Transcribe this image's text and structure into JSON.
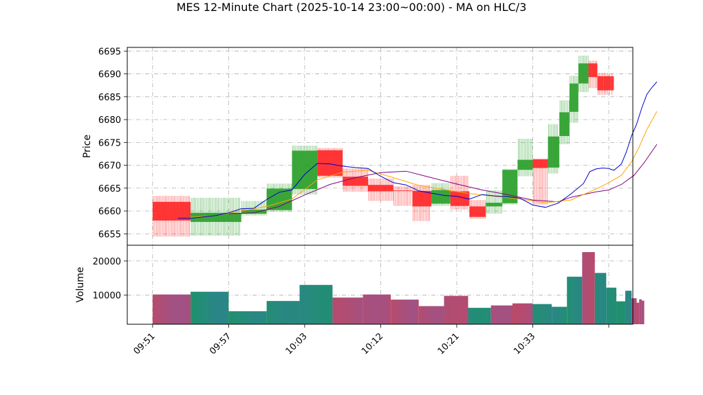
{
  "chart_data": [
    {
      "type": "candlestick",
      "panel": "price",
      "title": "MES 12-Minute Chart (2025-10-14 23:00~00:00) - MA on HLC/3",
      "ylabel": "Price",
      "ylim": [
        6652.5,
        6695.8
      ],
      "yticks": [
        "6655",
        "6660",
        "6665",
        "6670",
        "6675",
        "6680",
        "6685",
        "6690",
        "6695"
      ],
      "ytick_values": [
        6655,
        6660,
        6665,
        6670,
        6675,
        6680,
        6685,
        6690,
        6695
      ],
      "xticks": [
        "09:51",
        "09:57",
        "10:03",
        "10:12",
        "10:21",
        "10:33",
        ""
      ],
      "xtick_index": [
        0,
        6,
        12,
        18,
        24,
        30,
        36
      ],
      "x_range": [
        -2,
        37.9
      ],
      "grid": true,
      "colors": {
        "up": "#2ca02c",
        "down": "#ff2828",
        "grid": "#b0b0b0",
        "ma_fast": "#0000cc",
        "ma_mid": "#ffa500",
        "ma_slow": "#800080"
      },
      "candles": [
        {
          "o": 6662.0,
          "h": 6663.3,
          "l": 6654.4,
          "c": 6657.9
        },
        {
          "o": 6662.0,
          "h": 6663.3,
          "l": 6654.4,
          "c": 6657.9
        },
        {
          "o": 6662.0,
          "h": 6663.3,
          "l": 6654.4,
          "c": 6657.9
        },
        {
          "o": 6657.6,
          "h": 6662.9,
          "l": 6654.6,
          "c": 6659.6
        },
        {
          "o": 6657.6,
          "h": 6662.9,
          "l": 6654.6,
          "c": 6659.6
        },
        {
          "o": 6657.6,
          "h": 6662.9,
          "l": 6654.6,
          "c": 6659.6
        },
        {
          "o": 6659.4,
          "h": 6662.2,
          "l": 6659.0,
          "c": 6660.3
        },
        {
          "o": 6659.4,
          "h": 6662.2,
          "l": 6659.0,
          "c": 6660.3
        },
        {
          "o": 6659.4,
          "h": 6662.2,
          "l": 6659.0,
          "c": 6660.3
        },
        {
          "o": 6660.2,
          "h": 6666.0,
          "l": 6659.8,
          "c": 6664.9
        },
        {
          "o": 6660.2,
          "h": 6666.0,
          "l": 6659.8,
          "c": 6664.9
        },
        {
          "o": 6664.8,
          "h": 6674.3,
          "l": 6663.6,
          "c": 6673.2
        },
        {
          "o": 6664.8,
          "h": 6674.3,
          "l": 6663.6,
          "c": 6673.2
        },
        {
          "o": 6664.8,
          "h": 6674.3,
          "l": 6663.6,
          "c": 6673.2
        },
        {
          "o": 6673.3,
          "h": 6673.8,
          "l": 6667.3,
          "c": 6667.7
        },
        {
          "o": 6673.3,
          "h": 6673.8,
          "l": 6667.3,
          "c": 6667.7
        },
        {
          "o": 6673.3,
          "h": 6673.8,
          "l": 6667.3,
          "c": 6667.7
        },
        {
          "o": 6667.5,
          "h": 6669.3,
          "l": 6664.2,
          "c": 6665.5
        },
        {
          "o": 6667.5,
          "h": 6669.3,
          "l": 6664.2,
          "c": 6665.5
        },
        {
          "o": 6665.7,
          "h": 6667.1,
          "l": 6662.2,
          "c": 6664.3
        },
        {
          "o": 6665.7,
          "h": 6667.1,
          "l": 6662.2,
          "c": 6664.3
        },
        {
          "o": 6664.5,
          "h": 6665.4,
          "l": 6661.1,
          "c": 6664.4
        },
        {
          "o": 6664.4,
          "h": 6665.7,
          "l": 6657.8,
          "c": 6661.0
        },
        {
          "o": 6661.6,
          "h": 6666.1,
          "l": 6661.1,
          "c": 6664.6
        },
        {
          "o": 6664.3,
          "h": 6667.7,
          "l": 6660.3,
          "c": 6661.1
        },
        {
          "o": 6661.0,
          "h": 6662.4,
          "l": 6658.3,
          "c": 6658.7
        },
        {
          "o": 6661.0,
          "h": 6664.5,
          "l": 6659.4,
          "c": 6661.8
        },
        {
          "o": 6661.7,
          "h": 6669.2,
          "l": 6661.4,
          "c": 6669.0
        },
        {
          "o": 6669.0,
          "h": 6675.8,
          "l": 6667.6,
          "c": 6671.2
        },
        {
          "o": 6671.3,
          "h": 6671.5,
          "l": 6661.4,
          "c": 6669.4
        },
        {
          "o": 6669.5,
          "h": 6679.0,
          "l": 6668.2,
          "c": 6676.3
        },
        {
          "o": 6676.4,
          "h": 6684.2,
          "l": 6674.6,
          "c": 6681.6
        },
        {
          "o": 6681.7,
          "h": 6689.6,
          "l": 6679.3,
          "c": 6687.9
        },
        {
          "o": 6687.9,
          "h": 6694.0,
          "l": 6686.0,
          "c": 6692.3
        },
        {
          "o": 6692.3,
          "h": 6692.9,
          "l": 6686.9,
          "c": 6689.3
        },
        {
          "o": 6689.5,
          "h": 6690.2,
          "l": 6685.4,
          "c": 6686.4
        }
      ],
      "candle_span": [
        [
          0,
          3
        ],
        [
          3,
          7
        ],
        [
          7,
          9
        ],
        [
          9,
          11
        ],
        [
          11,
          13
        ],
        [
          13,
          15
        ],
        [
          15,
          17
        ],
        [
          17,
          19
        ],
        [
          19,
          20.5
        ],
        [
          20.5,
          22
        ],
        [
          22,
          23.5
        ],
        [
          23.5,
          25
        ],
        [
          25,
          26.3
        ],
        [
          26.3,
          27.6
        ],
        [
          27.6,
          28.8
        ],
        [
          28.8,
          30
        ],
        [
          30,
          31.2
        ],
        [
          31.2,
          32.1
        ],
        [
          32.1,
          32.9
        ],
        [
          32.9,
          33.6
        ],
        [
          33.6,
          34.4
        ],
        [
          34.4,
          35.1
        ],
        [
          35.1,
          35.6
        ],
        [
          35.6,
          36
        ],
        [
          36,
          36.2
        ],
        [
          36.2,
          36.4
        ]
      ],
      "span_candle": [
        0,
        3,
        6,
        9,
        11,
        14,
        17,
        19,
        21,
        22,
        23,
        24,
        25,
        26,
        27,
        28,
        29,
        30,
        31,
        32,
        33,
        34,
        35,
        35,
        35,
        35
      ],
      "ma_fast": [
        [
          2,
          6658.4
        ],
        [
          3,
          6658.4
        ],
        [
          4,
          6658.7
        ],
        [
          5,
          6659.0
        ],
        [
          6,
          6659.6
        ],
        [
          7,
          6660.5
        ],
        [
          8,
          6660.6
        ],
        [
          9,
          6662.5
        ],
        [
          10,
          6664.1
        ],
        [
          11,
          6664.6
        ],
        [
          12,
          6668.0
        ],
        [
          13,
          6670.4
        ],
        [
          14,
          6670.3
        ],
        [
          15,
          6669.8
        ],
        [
          16,
          6669.5
        ],
        [
          17,
          6669.3
        ],
        [
          18,
          6667.6
        ],
        [
          19,
          6666.2
        ],
        [
          20,
          6665.7
        ],
        [
          21,
          6664.4
        ],
        [
          22,
          6663.9
        ],
        [
          23,
          6663.4
        ],
        [
          24,
          6663.2
        ],
        [
          25,
          6662.6
        ],
        [
          26,
          6663.6
        ],
        [
          27,
          6663.3
        ],
        [
          28,
          6663.1
        ],
        [
          29,
          6662.8
        ],
        [
          30,
          6661.3
        ],
        [
          31,
          6660.8
        ],
        [
          32,
          6661.7
        ],
        [
          33,
          6663.7
        ],
        [
          34,
          6666.0
        ],
        [
          34.5,
          6668.6
        ],
        [
          35,
          6669.2
        ],
        [
          35.5,
          6669.4
        ],
        [
          36,
          6669.3
        ],
        [
          36.4,
          6668.9
        ],
        [
          36.8,
          6669.8
        ],
        [
          37,
          6670.3
        ],
        [
          37.4,
          6673.0
        ],
        [
          37.8,
          6676.5
        ],
        [
          38.2,
          6679.0
        ],
        [
          38.6,
          6682.5
        ],
        [
          39,
          6685.5
        ],
        [
          39.4,
          6687.0
        ],
        [
          39.8,
          6688.3
        ]
      ],
      "ma_mid": [
        [
          3,
          6658.6
        ],
        [
          5,
          6659.0
        ],
        [
          7,
          6660.0
        ],
        [
          9,
          6661.0
        ],
        [
          11,
          6662.6
        ],
        [
          13,
          6666.8
        ],
        [
          15,
          6668.5
        ],
        [
          17,
          6668.9
        ],
        [
          19,
          6667.3
        ],
        [
          21,
          6665.6
        ],
        [
          23,
          6664.7
        ],
        [
          25,
          6663.8
        ],
        [
          27,
          6663.2
        ],
        [
          29,
          6662.6
        ],
        [
          31,
          6661.8
        ],
        [
          33,
          6662.4
        ],
        [
          35,
          6664.8
        ],
        [
          36,
          6666.2
        ],
        [
          37,
          6667.8
        ],
        [
          37.8,
          6670.8
        ],
        [
          38.4,
          6674.0
        ],
        [
          39,
          6677.8
        ],
        [
          39.8,
          6681.8
        ]
      ],
      "ma_slow": [
        [
          6,
          6659.4
        ],
        [
          8,
          6659.6
        ],
        [
          10,
          6661.0
        ],
        [
          12,
          6663.5
        ],
        [
          14,
          6665.8
        ],
        [
          16,
          6667.3
        ],
        [
          18,
          6668.4
        ],
        [
          20,
          6668.7
        ],
        [
          22,
          6667.3
        ],
        [
          24,
          6665.9
        ],
        [
          26,
          6664.6
        ],
        [
          28,
          6663.6
        ],
        [
          30,
          6662.4
        ],
        [
          32,
          6662.0
        ],
        [
          33,
          6663.0
        ],
        [
          35,
          6664.2
        ],
        [
          36,
          6664.6
        ],
        [
          37,
          6665.8
        ],
        [
          38,
          6667.8
        ],
        [
          38.8,
          6670.6
        ],
        [
          39.4,
          6673.0
        ],
        [
          39.8,
          6674.6
        ]
      ]
    },
    {
      "type": "bar",
      "panel": "volume",
      "ylabel": "Volume",
      "ylim": [
        1500,
        24600
      ],
      "yticks": [
        "10000",
        "20000"
      ],
      "ytick_values": [
        10000,
        20000
      ],
      "colors": {
        "up": "#1f8f6f",
        "down": "#b84a6a",
        "stripe": "#5a6bd8"
      },
      "bars": [
        {
          "x0": 0,
          "x1": 3,
          "value": 10200,
          "dir": "down"
        },
        {
          "x0": 3,
          "x1": 6,
          "value": 11000,
          "dir": "up"
        },
        {
          "x0": 6,
          "x1": 9,
          "value": 5300,
          "dir": "up"
        },
        {
          "x0": 9,
          "x1": 11.6,
          "value": 8300,
          "dir": "up"
        },
        {
          "x0": 11.6,
          "x1": 14.2,
          "value": 13000,
          "dir": "up"
        },
        {
          "x0": 14.2,
          "x1": 16.6,
          "value": 9300,
          "dir": "down"
        },
        {
          "x0": 16.6,
          "x1": 18.8,
          "value": 10200,
          "dir": "down"
        },
        {
          "x0": 18.8,
          "x1": 21,
          "value": 8700,
          "dir": "down"
        },
        {
          "x0": 21,
          "x1": 23,
          "value": 6800,
          "dir": "down"
        },
        {
          "x0": 23,
          "x1": 24.9,
          "value": 9800,
          "dir": "down"
        },
        {
          "x0": 24.9,
          "x1": 26.7,
          "value": 6300,
          "dir": "up"
        },
        {
          "x0": 26.7,
          "x1": 28.4,
          "value": 7000,
          "dir": "down"
        },
        {
          "x0": 28.4,
          "x1": 30,
          "value": 7600,
          "dir": "down"
        },
        {
          "x0": 30,
          "x1": 31.5,
          "value": 7400,
          "dir": "up"
        },
        {
          "x0": 31.5,
          "x1": 32.7,
          "value": 6600,
          "dir": "up"
        },
        {
          "x0": 32.7,
          "x1": 33.9,
          "value": 15400,
          "dir": "up"
        },
        {
          "x0": 33.9,
          "x1": 34.9,
          "value": 22600,
          "dir": "down"
        },
        {
          "x0": 34.9,
          "x1": 35.8,
          "value": 16500,
          "dir": "up"
        },
        {
          "x0": 35.8,
          "x1": 36.6,
          "value": 12200,
          "dir": "up"
        },
        {
          "x0": 36.6,
          "x1": 37.3,
          "value": 8200,
          "dir": "up"
        },
        {
          "x0": 37.3,
          "x1": 37.8,
          "value": 11300,
          "dir": "up"
        },
        {
          "x0": 37.8,
          "x1": 38.2,
          "value": 9100,
          "dir": "down"
        },
        {
          "x0": 38.2,
          "x1": 38.4,
          "value": 7800,
          "dir": "down"
        },
        {
          "x0": 38.4,
          "x1": 38.6,
          "value": 8800,
          "dir": "down"
        },
        {
          "x0": 38.6,
          "x1": 38.8,
          "value": 8400,
          "dir": "down"
        }
      ]
    }
  ]
}
